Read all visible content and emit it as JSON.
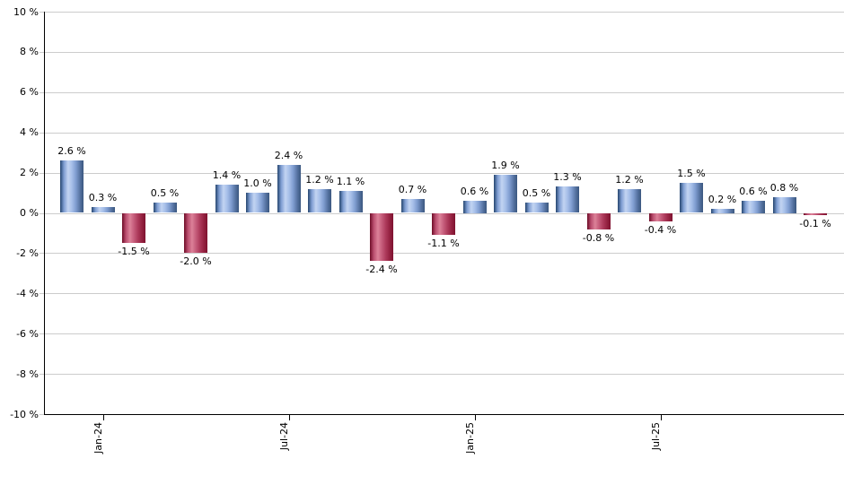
{
  "chart_data": {
    "type": "bar",
    "title": "",
    "xlabel": "",
    "ylabel": "",
    "unit": "%",
    "values": [
      2.6,
      0.3,
      -1.5,
      0.5,
      -2.0,
      1.4,
      1.0,
      2.4,
      1.2,
      1.1,
      -2.4,
      0.7,
      -1.1,
      0.6,
      1.9,
      0.5,
      1.3,
      -0.8,
      1.2,
      -0.4,
      1.5,
      0.2,
      0.6,
      0.8,
      -0.1
    ],
    "bar_labels": [
      "2.6 %",
      "0.3 %",
      "-1.5 %",
      "0.5 %",
      "-2.0 %",
      "1.4 %",
      "1.0 %",
      "2.4 %",
      "1.2 %",
      "1.1 %",
      "-2.4 %",
      "0.7 %",
      "-1.1 %",
      "0.6 %",
      "1.9 %",
      "0.5 %",
      "1.3 %",
      "-0.8 %",
      "1.2 %",
      "-0.4 %",
      "1.5 %",
      "0.2 %",
      "0.6 %",
      "0.8 %",
      "-0.1 %"
    ],
    "ylim": [
      -10,
      10
    ],
    "y_tick_values": [
      10,
      8,
      6,
      4,
      2,
      0,
      -2,
      -4,
      -6,
      -8,
      -10
    ],
    "y_tick_labels": [
      "10 %",
      "8 %",
      "6 %",
      "4 %",
      "2 %",
      "0 %",
      "-2 %",
      "-4 %",
      "-6 %",
      "-8 %",
      "-10 %"
    ],
    "x_ticks": [
      {
        "label": "Jan-24",
        "index": 1
      },
      {
        "label": "Jul-24",
        "index": 7
      },
      {
        "label": "Jan-25",
        "index": 13
      },
      {
        "label": "Jul-25",
        "index": 19
      }
    ],
    "grid": true,
    "legend": "none",
    "colors": {
      "positive_bar_dark": "#25456f",
      "positive_bar_light": "#c2d4f2",
      "negative_bar_dark": "#6d0b26",
      "negative_bar_light": "#dc8198",
      "gridline": "#cccccc",
      "axis": "#000000",
      "text": "#000000",
      "background": "#ffffff"
    }
  }
}
